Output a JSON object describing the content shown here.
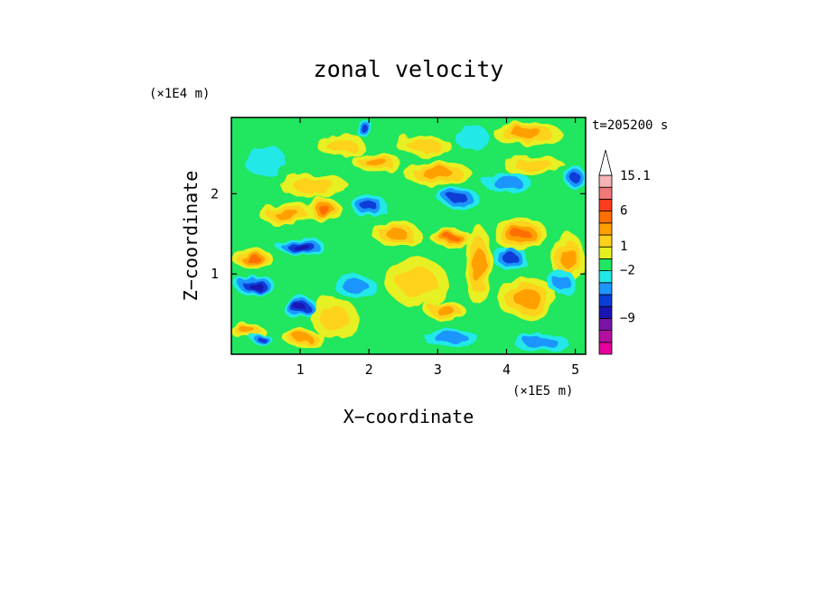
{
  "chart_data": {
    "type": "heatmap",
    "title": "zonal velocity",
    "xlabel": "X−coordinate",
    "ylabel": "Z−coordinate",
    "x_scale_label": "(×1E5 m)",
    "y_scale_label": "(×1E4 m)",
    "time_label": "t=205200 s",
    "xlim": [
      0,
      5.15
    ],
    "ylim": [
      0,
      2.95
    ],
    "xticks": [
      {
        "value": 1,
        "label": "1"
      },
      {
        "value": 2,
        "label": "2"
      },
      {
        "value": 3,
        "label": "3"
      },
      {
        "value": 4,
        "label": "4"
      },
      {
        "value": 5,
        "label": "5"
      }
    ],
    "yticks": [
      {
        "value": 1,
        "label": "1"
      },
      {
        "value": 2,
        "label": "2"
      }
    ],
    "colorbar": {
      "levels": [
        {
          "color": "#e6009e",
          "label": ""
        },
        {
          "color": "#b40fa0",
          "label": ""
        },
        {
          "color": "#7a14a8",
          "label": "−9"
        },
        {
          "color": "#1a14b4",
          "label": ""
        },
        {
          "color": "#0a3cd6",
          "label": ""
        },
        {
          "color": "#1e96ff",
          "label": ""
        },
        {
          "color": "#20e8e8",
          "label": "−2"
        },
        {
          "color": "#20e660",
          "label": ""
        },
        {
          "color": "#e6f020",
          "label": "1"
        },
        {
          "color": "#ffd21e",
          "label": ""
        },
        {
          "color": "#ffa000",
          "label": ""
        },
        {
          "color": "#ff6e00",
          "label": "6"
        },
        {
          "color": "#ff3c1e",
          "label": ""
        },
        {
          "color": "#f07878",
          "label": ""
        },
        {
          "color": "#f8b4b4",
          "label": "15.1"
        }
      ],
      "extend": "max"
    },
    "background_color": "#20e660",
    "blobs": [
      {
        "x": 0.25,
        "z": 0.28,
        "rx": 0.25,
        "rz": 0.1,
        "level": 10
      },
      {
        "x": 0.45,
        "z": 0.18,
        "rx": 0.15,
        "rz": 0.06,
        "level": 4
      },
      {
        "x": 0.35,
        "z": 0.85,
        "rx": 0.3,
        "rz": 0.12,
        "level": 3
      },
      {
        "x": 1.0,
        "z": 0.58,
        "rx": 0.25,
        "rz": 0.14,
        "level": 3
      },
      {
        "x": 1.05,
        "z": 0.2,
        "rx": 0.3,
        "rz": 0.1,
        "level": 10
      },
      {
        "x": 1.5,
        "z": 0.45,
        "rx": 0.35,
        "rz": 0.25,
        "level": 9
      },
      {
        "x": 1.8,
        "z": 0.85,
        "rx": 0.3,
        "rz": 0.15,
        "level": 5
      },
      {
        "x": 0.3,
        "z": 1.2,
        "rx": 0.3,
        "rz": 0.12,
        "level": 11
      },
      {
        "x": 1.0,
        "z": 1.35,
        "rx": 0.35,
        "rz": 0.12,
        "level": 3
      },
      {
        "x": 0.8,
        "z": 1.75,
        "rx": 0.4,
        "rz": 0.15,
        "level": 10
      },
      {
        "x": 1.35,
        "z": 1.8,
        "rx": 0.25,
        "rz": 0.15,
        "level": 11
      },
      {
        "x": 1.2,
        "z": 2.1,
        "rx": 0.5,
        "rz": 0.15,
        "level": 9
      },
      {
        "x": 0.5,
        "z": 2.4,
        "rx": 0.3,
        "rz": 0.2,
        "level": 6
      },
      {
        "x": 1.6,
        "z": 2.6,
        "rx": 0.35,
        "rz": 0.15,
        "level": 9
      },
      {
        "x": 1.95,
        "z": 2.8,
        "rx": 0.12,
        "rz": 0.12,
        "level": 4
      },
      {
        "x": 2.0,
        "z": 1.85,
        "rx": 0.25,
        "rz": 0.15,
        "level": 4
      },
      {
        "x": 2.4,
        "z": 1.5,
        "rx": 0.35,
        "rz": 0.15,
        "level": 10
      },
      {
        "x": 2.7,
        "z": 0.9,
        "rx": 0.45,
        "rz": 0.3,
        "level": 9
      },
      {
        "x": 3.1,
        "z": 0.55,
        "rx": 0.3,
        "rz": 0.12,
        "level": 10
      },
      {
        "x": 3.2,
        "z": 0.2,
        "rx": 0.4,
        "rz": 0.1,
        "level": 5
      },
      {
        "x": 3.0,
        "z": 2.25,
        "rx": 0.5,
        "rz": 0.15,
        "level": 10
      },
      {
        "x": 3.3,
        "z": 1.95,
        "rx": 0.3,
        "rz": 0.12,
        "level": 4
      },
      {
        "x": 3.2,
        "z": 1.45,
        "rx": 0.3,
        "rz": 0.12,
        "level": 11
      },
      {
        "x": 2.8,
        "z": 2.6,
        "rx": 0.4,
        "rz": 0.12,
        "level": 9
      },
      {
        "x": 2.1,
        "z": 2.4,
        "rx": 0.35,
        "rz": 0.12,
        "level": 10
      },
      {
        "x": 3.5,
        "z": 2.7,
        "rx": 0.25,
        "rz": 0.15,
        "level": 6
      },
      {
        "x": 3.6,
        "z": 1.1,
        "rx": 0.2,
        "rz": 0.5,
        "level": 10
      },
      {
        "x": 4.05,
        "z": 1.2,
        "rx": 0.25,
        "rz": 0.15,
        "level": 4
      },
      {
        "x": 4.2,
        "z": 1.5,
        "rx": 0.4,
        "rz": 0.2,
        "level": 11
      },
      {
        "x": 4.3,
        "z": 0.7,
        "rx": 0.45,
        "rz": 0.25,
        "level": 10
      },
      {
        "x": 4.5,
        "z": 0.15,
        "rx": 0.4,
        "rz": 0.1,
        "level": 5
      },
      {
        "x": 4.0,
        "z": 2.15,
        "rx": 0.35,
        "rz": 0.12,
        "level": 5
      },
      {
        "x": 4.4,
        "z": 2.35,
        "rx": 0.45,
        "rz": 0.12,
        "level": 9
      },
      {
        "x": 4.3,
        "z": 2.75,
        "rx": 0.5,
        "rz": 0.15,
        "level": 10
      },
      {
        "x": 4.9,
        "z": 1.2,
        "rx": 0.25,
        "rz": 0.3,
        "level": 10
      },
      {
        "x": 5.0,
        "z": 2.2,
        "rx": 0.15,
        "rz": 0.15,
        "level": 4
      },
      {
        "x": 4.8,
        "z": 0.9,
        "rx": 0.2,
        "rz": 0.15,
        "level": 5
      }
    ]
  }
}
